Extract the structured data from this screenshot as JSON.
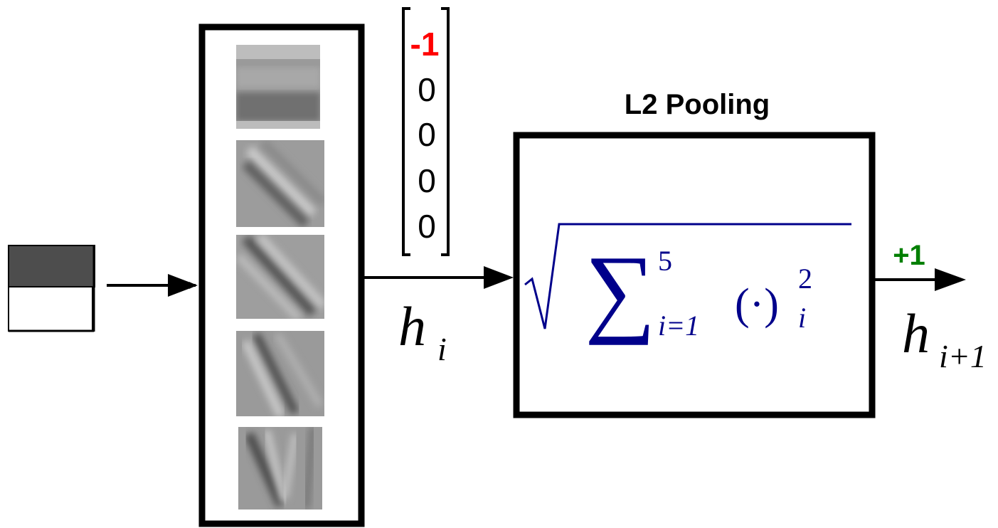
{
  "input_patch": {
    "top_color": "#4d4d4d",
    "bottom_color": "#ffffff"
  },
  "filter_bank": {
    "filters": [
      {
        "name": "horizontal-edge-filter",
        "orientation": "horizontal"
      },
      {
        "name": "diagonal-filter-1",
        "orientation": "diagonal"
      },
      {
        "name": "diagonal-filter-2",
        "orientation": "diagonal"
      },
      {
        "name": "diagonal-filter-3",
        "orientation": "diagonal"
      },
      {
        "name": "near-vertical-filter",
        "orientation": "near-vertical"
      }
    ]
  },
  "response_vector": {
    "values": [
      "-1",
      "0",
      "0",
      "0",
      "0"
    ],
    "highlight_color": "#ff0000",
    "normal_color": "#000000"
  },
  "h_i": {
    "base": "h",
    "subscript": "i"
  },
  "pooling": {
    "title": "L2 Pooling",
    "formula": {
      "sum_symbol": "∑",
      "upper_limit": "5",
      "lower_limit": "i=1",
      "operand": "(·)",
      "exponent": "2",
      "subscript": "i",
      "color": "#00008b"
    }
  },
  "output": {
    "value": "+1",
    "value_color": "#007f00",
    "base": "h",
    "subscript": "i+1"
  }
}
